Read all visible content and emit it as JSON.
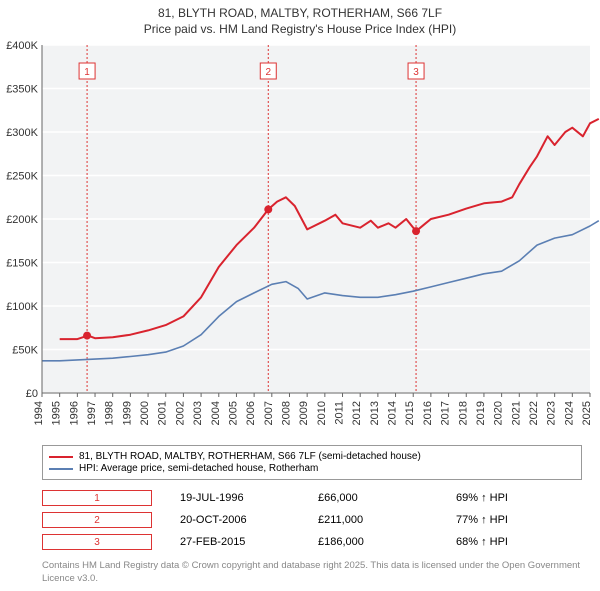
{
  "title_line1": "81, BLYTH ROAD, MALTBY, ROTHERHAM, S66 7LF",
  "title_line2": "Price paid vs. HM Land Registry's House Price Index (HPI)",
  "chart": {
    "type": "line",
    "x": {
      "min": 1994,
      "max": 2025,
      "ticks": [
        1994,
        1995,
        1996,
        1997,
        1998,
        1999,
        2000,
        2001,
        2002,
        2003,
        2004,
        2005,
        2006,
        2007,
        2008,
        2009,
        2010,
        2011,
        2012,
        2013,
        2014,
        2015,
        2016,
        2017,
        2018,
        2019,
        2020,
        2021,
        2022,
        2023,
        2024,
        2025
      ]
    },
    "y": {
      "min": 0,
      "max": 400000,
      "ticks": [
        0,
        50000,
        100000,
        150000,
        200000,
        250000,
        300000,
        350000,
        400000
      ],
      "labels": [
        "£0",
        "£50K",
        "£100K",
        "£150K",
        "£200K",
        "£250K",
        "£300K",
        "£350K",
        "£400K"
      ]
    },
    "plot_bg": "#f2f3f4",
    "grid_y_color": "#ffffff",
    "axis_color": "#666666",
    "marker_line_color": "#d33",
    "series": [
      {
        "name": "81, BLYTH ROAD, MALTBY, ROTHERHAM, S66 7LF (semi-detached house)",
        "color": "#d9232e",
        "width": 2,
        "points": [
          [
            1995,
            62000
          ],
          [
            1996,
            62000
          ],
          [
            1996.6,
            66000
          ],
          [
            1997,
            63000
          ],
          [
            1998,
            64000
          ],
          [
            1999,
            67000
          ],
          [
            2000,
            72000
          ],
          [
            2001,
            78000
          ],
          [
            2002,
            88000
          ],
          [
            2003,
            110000
          ],
          [
            2004,
            145000
          ],
          [
            2005,
            170000
          ],
          [
            2006,
            190000
          ],
          [
            2006.8,
            211000
          ],
          [
            2007.3,
            220000
          ],
          [
            2007.8,
            225000
          ],
          [
            2008.3,
            215000
          ],
          [
            2009,
            188000
          ],
          [
            2010,
            198000
          ],
          [
            2010.6,
            205000
          ],
          [
            2011,
            195000
          ],
          [
            2012,
            190000
          ],
          [
            2012.6,
            198000
          ],
          [
            2013,
            190000
          ],
          [
            2013.6,
            195000
          ],
          [
            2014,
            190000
          ],
          [
            2014.6,
            200000
          ],
          [
            2015.16,
            186000
          ],
          [
            2015.7,
            195000
          ],
          [
            2016,
            200000
          ],
          [
            2017,
            205000
          ],
          [
            2018,
            212000
          ],
          [
            2019,
            218000
          ],
          [
            2020,
            220000
          ],
          [
            2020.6,
            225000
          ],
          [
            2021,
            240000
          ],
          [
            2021.6,
            260000
          ],
          [
            2022,
            272000
          ],
          [
            2022.6,
            295000
          ],
          [
            2023,
            285000
          ],
          [
            2023.6,
            300000
          ],
          [
            2024,
            305000
          ],
          [
            2024.6,
            295000
          ],
          [
            2025,
            310000
          ],
          [
            2025.5,
            315000
          ]
        ]
      },
      {
        "name": "HPI: Average price, semi-detached house, Rotherham",
        "color": "#5b7fb3",
        "width": 1.6,
        "points": [
          [
            1994,
            37000
          ],
          [
            1995,
            37000
          ],
          [
            1996,
            38000
          ],
          [
            1997,
            39000
          ],
          [
            1998,
            40000
          ],
          [
            1999,
            42000
          ],
          [
            2000,
            44000
          ],
          [
            2001,
            47000
          ],
          [
            2002,
            54000
          ],
          [
            2003,
            67000
          ],
          [
            2004,
            88000
          ],
          [
            2005,
            105000
          ],
          [
            2006,
            115000
          ],
          [
            2007,
            125000
          ],
          [
            2007.8,
            128000
          ],
          [
            2008.5,
            120000
          ],
          [
            2009,
            108000
          ],
          [
            2010,
            115000
          ],
          [
            2011,
            112000
          ],
          [
            2012,
            110000
          ],
          [
            2013,
            110000
          ],
          [
            2014,
            113000
          ],
          [
            2015,
            117000
          ],
          [
            2016,
            122000
          ],
          [
            2017,
            127000
          ],
          [
            2018,
            132000
          ],
          [
            2019,
            137000
          ],
          [
            2020,
            140000
          ],
          [
            2021,
            152000
          ],
          [
            2022,
            170000
          ],
          [
            2023,
            178000
          ],
          [
            2024,
            182000
          ],
          [
            2025,
            192000
          ],
          [
            2025.5,
            198000
          ]
        ]
      }
    ],
    "markers": [
      {
        "n": "1",
        "x": 1996.55,
        "date": "19-JUL-1996",
        "price": "£66,000",
        "hpi": "69% ↑ HPI",
        "point_y": 66000
      },
      {
        "n": "2",
        "x": 2006.8,
        "date": "20-OCT-2006",
        "price": "£211,000",
        "hpi": "77% ↑ HPI",
        "point_y": 211000
      },
      {
        "n": "3",
        "x": 2015.16,
        "date": "27-FEB-2015",
        "price": "£186,000",
        "hpi": "68% ↑ HPI",
        "point_y": 186000
      }
    ]
  },
  "attribution": "Contains HM Land Registry data © Crown copyright and database right 2025. This data is licensed under the Open Government Licence v3.0."
}
